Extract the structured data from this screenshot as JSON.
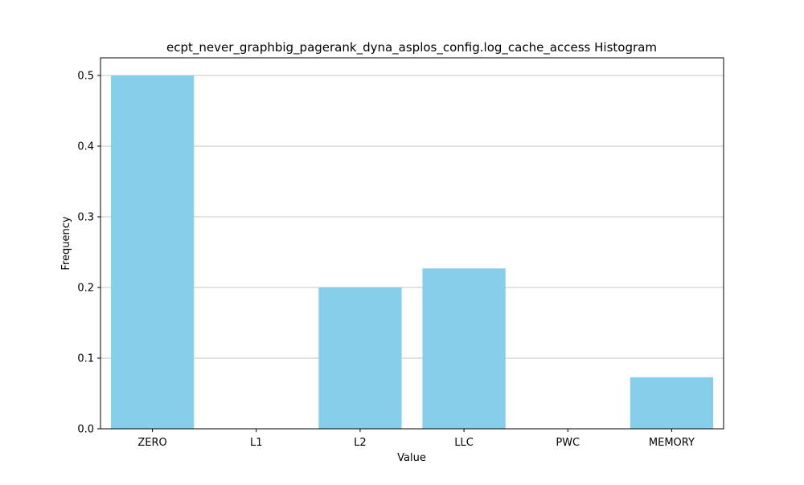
{
  "chart_data": {
    "type": "bar",
    "title": "ecpt_never_graphbig_pagerank_dyna_asplos_config.log_cache_access Histogram",
    "xlabel": "Value",
    "ylabel": "Frequency",
    "categories": [
      "ZERO",
      "L1",
      "L2",
      "LLC",
      "PWC",
      "MEMORY"
    ],
    "values": [
      0.5,
      0.0,
      0.2,
      0.227,
      0.0,
      0.073
    ],
    "ylim": [
      0,
      0.525
    ],
    "yticks": [
      0.0,
      0.1,
      0.2,
      0.3,
      0.4,
      0.5
    ],
    "ytick_labels": [
      "0.0",
      "0.1",
      "0.2",
      "0.3",
      "0.4",
      "0.5"
    ],
    "grid": "y-major",
    "bar_color": "#87CEEB",
    "grid_color": "#b0b0b0"
  }
}
